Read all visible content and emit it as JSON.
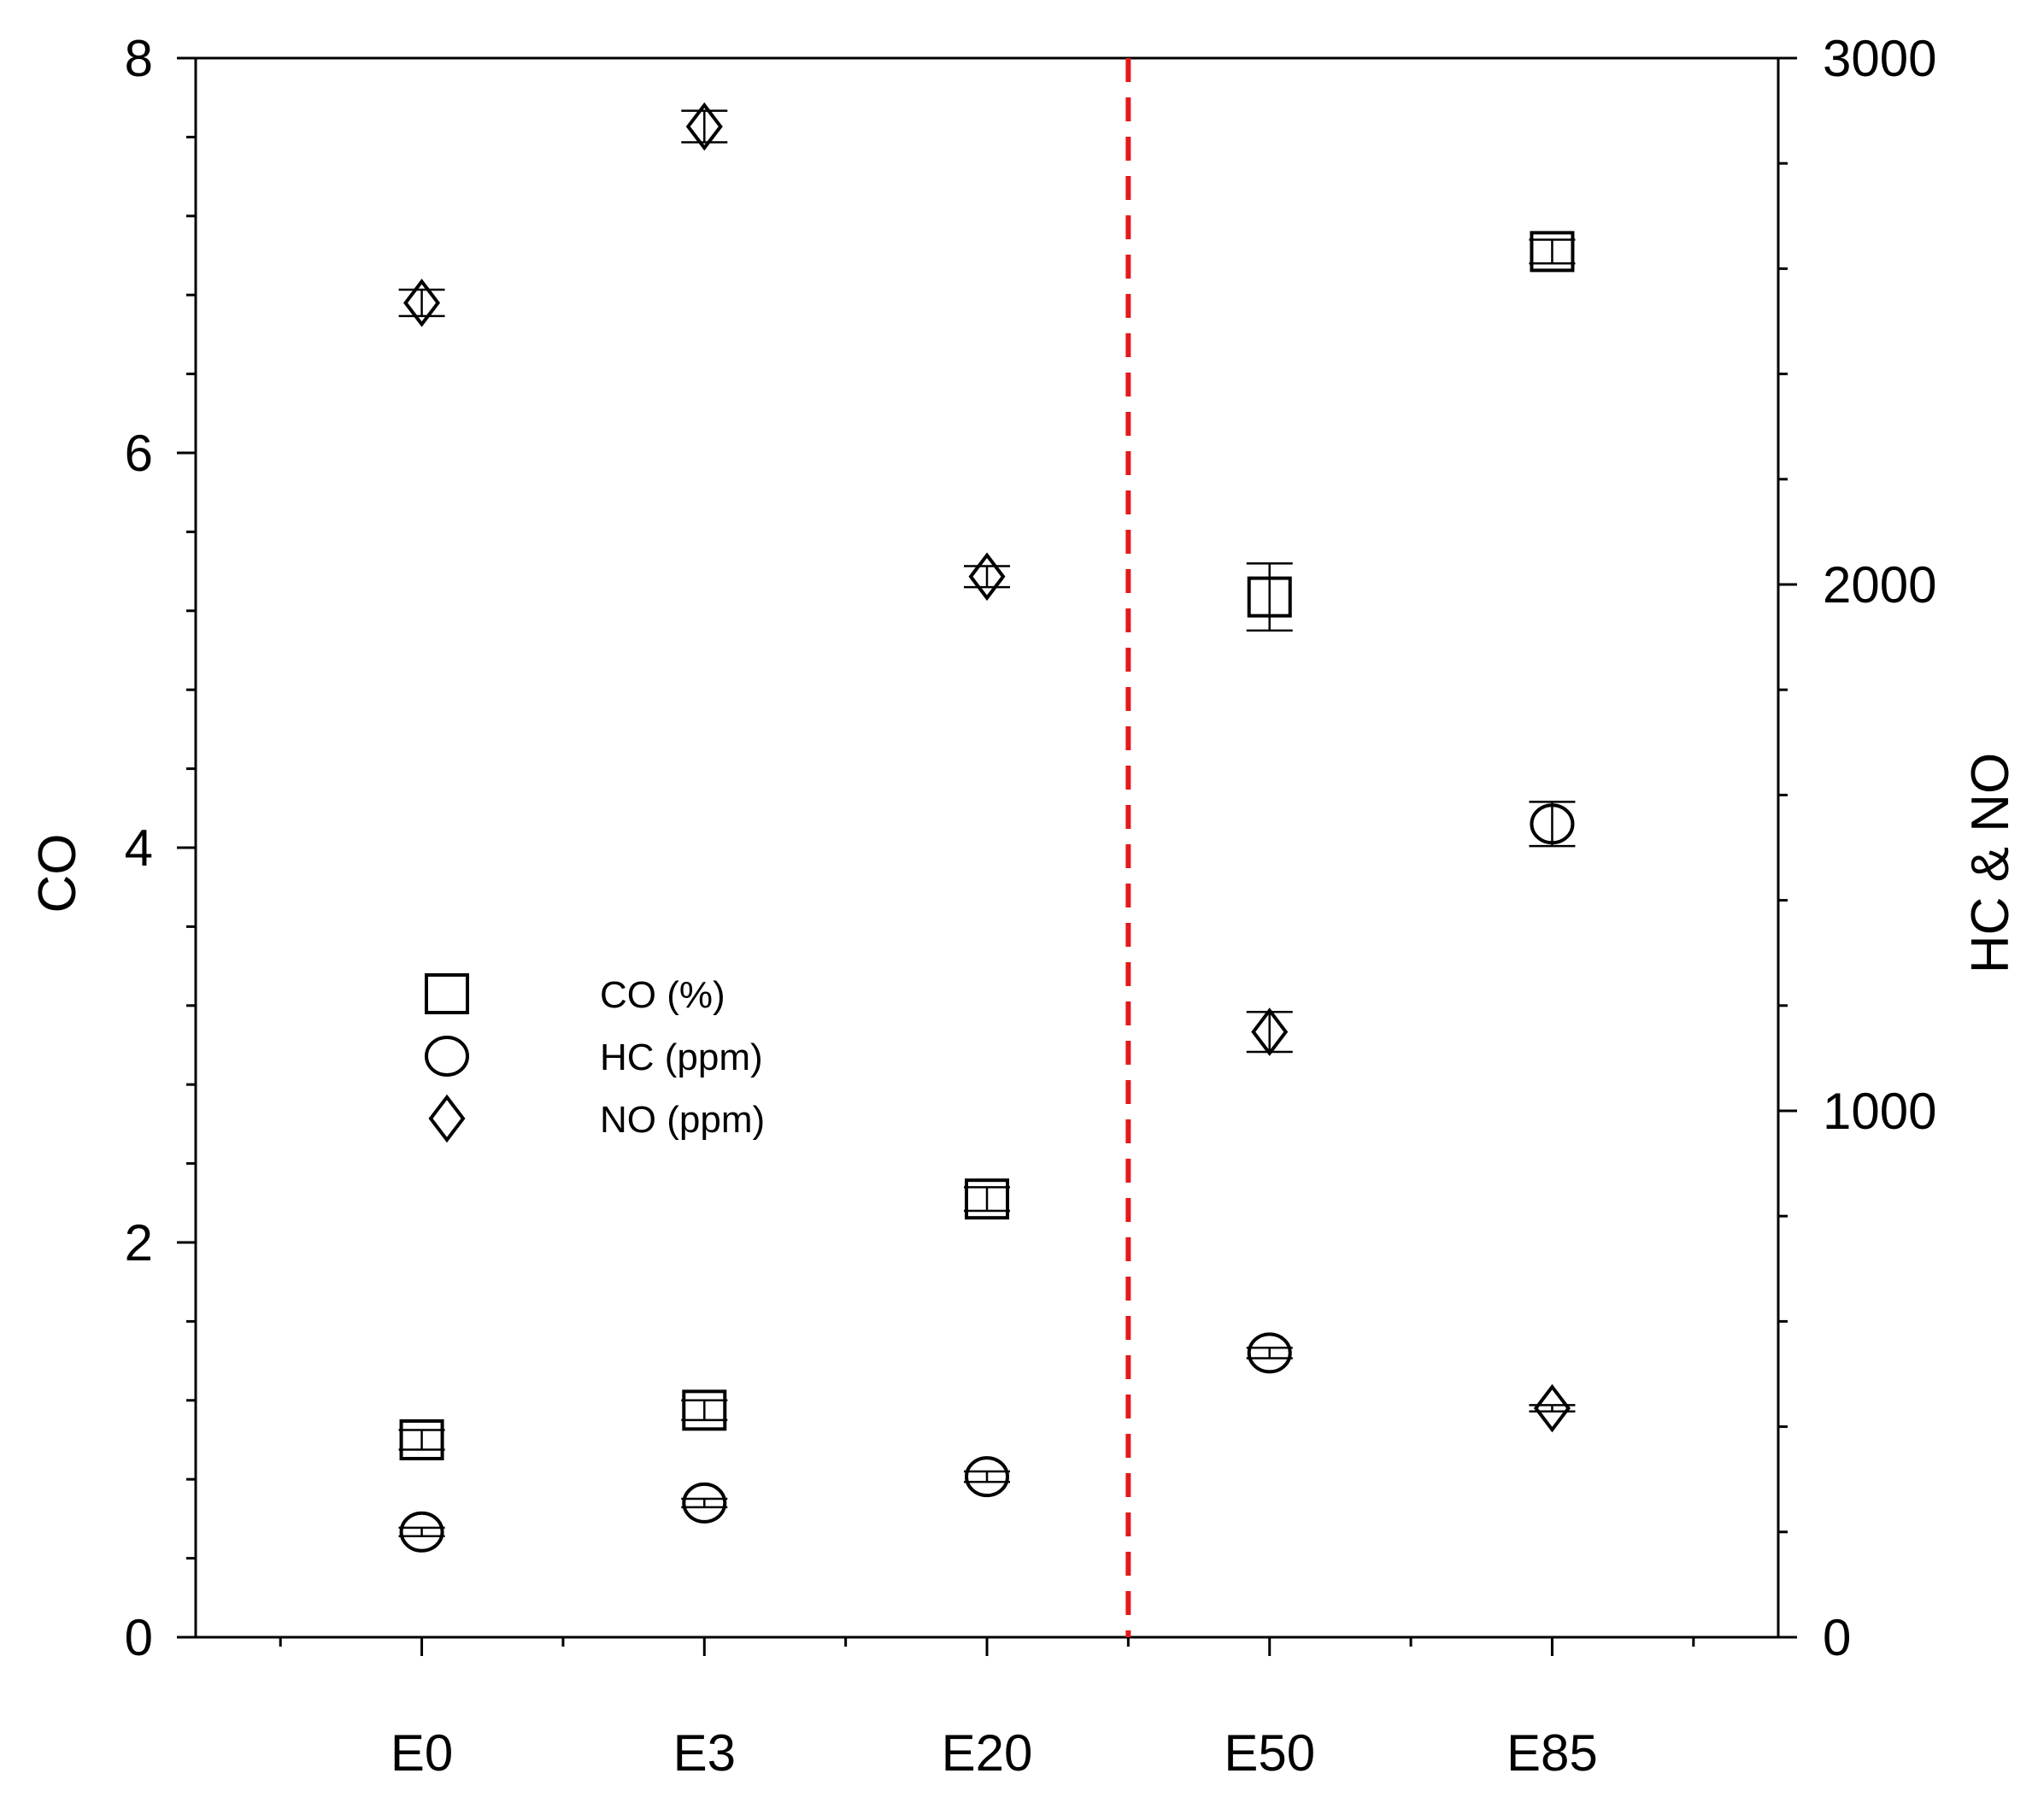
{
  "chart_data": {
    "type": "scatter",
    "categories": [
      "E0",
      "E3",
      "E20",
      "E50",
      "E85"
    ],
    "ylabel": "CO",
    "y2label": "HC & NO",
    "ylim": [
      0,
      8
    ],
    "y2lim": [
      0,
      3000
    ],
    "yticks": [
      "0",
      "2",
      "4",
      "6",
      "8"
    ],
    "y2ticks": [
      "0",
      "1000",
      "2000",
      "3000"
    ],
    "divider_after_category": "E20",
    "divider_color": "#e31a1c",
    "legend_position": "center-left",
    "series": [
      {
        "name": "CO (%)",
        "marker": "square",
        "axis": "left",
        "values": [
          1.0,
          1.15,
          2.22,
          5.27,
          7.02
        ],
        "errors": [
          0.05,
          0.05,
          0.06,
          0.17,
          0.06
        ]
      },
      {
        "name": "HC (ppm)",
        "marker": "circle",
        "axis": "right",
        "values": [
          200,
          255,
          305,
          540,
          1545
        ],
        "errors": [
          8,
          8,
          10,
          10,
          42
        ]
      },
      {
        "name": "NO (ppm)",
        "marker": "diamond",
        "axis": "right",
        "values": [
          2535,
          2870,
          2015,
          1150,
          435
        ],
        "errors": [
          25,
          30,
          20,
          38,
          6
        ]
      }
    ]
  }
}
